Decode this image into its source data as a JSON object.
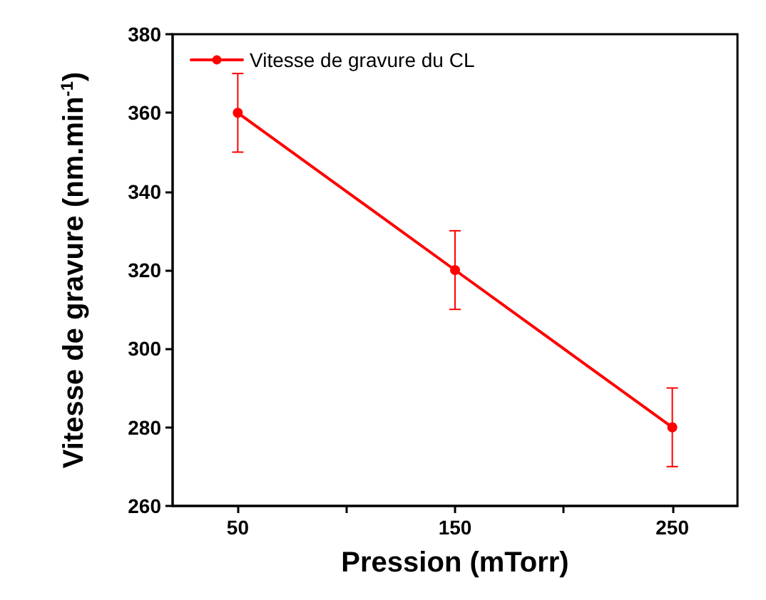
{
  "chart_data": {
    "type": "line",
    "xlabel": "Pression (mTorr)",
    "ylabel": "Vitesse de gravure (nm.min$^{-1}$)",
    "x": [
      50,
      150,
      250
    ],
    "series": [
      {
        "name": "Vitesse de gravure du CL",
        "color": "#ff0000",
        "values": [
          360,
          320,
          280
        ],
        "errors": [
          10,
          10,
          10
        ]
      }
    ],
    "xlim": [
      20,
      280
    ],
    "xticks": [
      50,
      {
        "value": 100,
        "label": null
      },
      150,
      {
        "value": 200,
        "label": null
      },
      250
    ],
    "ylim": [
      260,
      380
    ],
    "yticks": [
      260,
      280,
      300,
      320,
      340,
      360,
      380
    ],
    "grid": false,
    "legend": "top left",
    "marker": "circle",
    "line_style": "solid"
  }
}
